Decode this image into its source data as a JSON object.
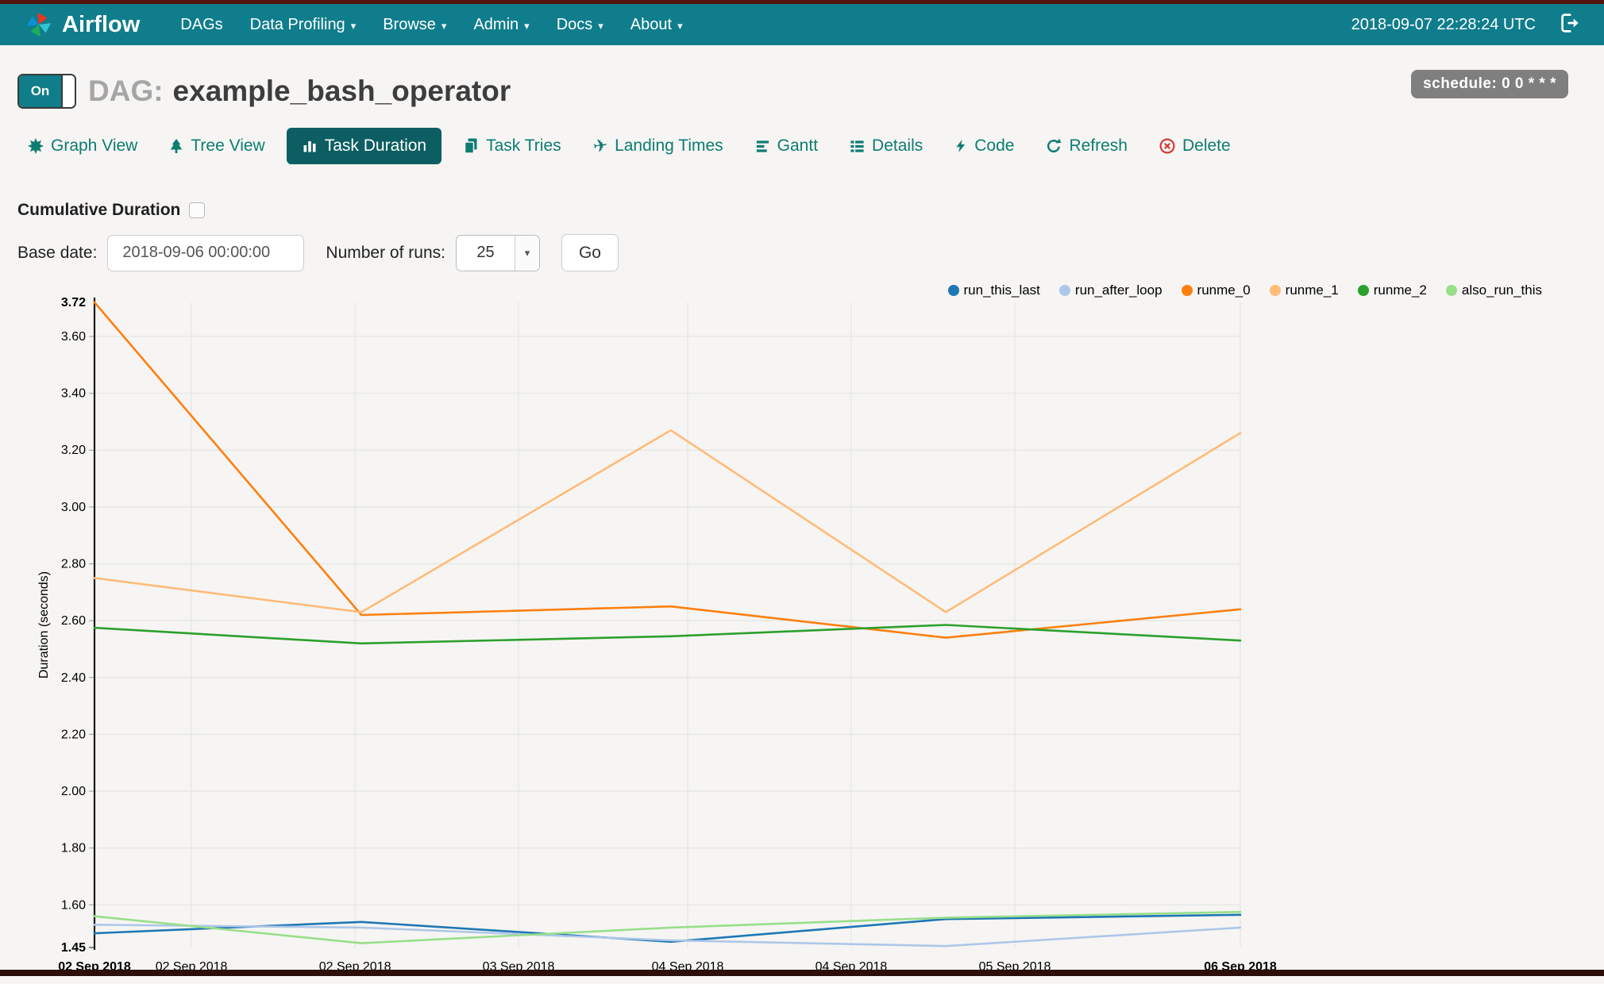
{
  "navbar": {
    "brand": "Airflow",
    "items": [
      {
        "label": "DAGs",
        "caret": false
      },
      {
        "label": "Data Profiling",
        "caret": true
      },
      {
        "label": "Browse",
        "caret": true
      },
      {
        "label": "Admin",
        "caret": true
      },
      {
        "label": "Docs",
        "caret": true
      },
      {
        "label": "About",
        "caret": true
      }
    ],
    "clock": "2018-09-07 22:28:24 UTC"
  },
  "header": {
    "toggle_on_label": "On",
    "dag_prefix": "DAG:",
    "dag_name": "example_bash_operator",
    "schedule_badge": "schedule: 0 0 * * *"
  },
  "tabs": {
    "items": [
      {
        "label": "Graph View"
      },
      {
        "label": "Tree View"
      },
      {
        "label": "Task Duration",
        "active": true
      },
      {
        "label": "Task Tries"
      },
      {
        "label": "Landing Times"
      },
      {
        "label": "Gantt"
      },
      {
        "label": "Details"
      },
      {
        "label": "Code"
      },
      {
        "label": "Refresh"
      },
      {
        "label": "Delete"
      }
    ]
  },
  "controls": {
    "cumulative_label": "Cumulative Duration",
    "base_date_label": "Base date:",
    "base_date_value": "2018-09-06 00:00:00",
    "runs_label": "Number of runs:",
    "runs_value": "25",
    "go_label": "Go"
  },
  "chart_data": {
    "type": "line",
    "ylabel": "Duration (seconds)",
    "y_min": 1.45,
    "y_max": 3.72,
    "y_min_label": "1.45",
    "y_max_label": "3.72",
    "y_ticks": [
      "3.60",
      "3.40",
      "3.20",
      "3.00",
      "2.80",
      "2.60",
      "2.40",
      "2.20",
      "2.00",
      "1.80",
      "1.60"
    ],
    "x_ticks": [
      {
        "f": 0.0,
        "label": "02 Sep 2018",
        "bold": true,
        "grid": false
      },
      {
        "f": 0.0846,
        "label": "02 Sep 2018",
        "bold": false,
        "grid": true
      },
      {
        "f": 0.2274,
        "label": "02 Sep 2018",
        "bold": false,
        "grid": true
      },
      {
        "f": 0.3701,
        "label": "03 Sep 2018",
        "bold": false,
        "grid": true
      },
      {
        "f": 0.5177,
        "label": "04 Sep 2018",
        "bold": false,
        "grid": true
      },
      {
        "f": 0.6604,
        "label": "04 Sep 2018",
        "bold": false,
        "grid": true
      },
      {
        "f": 0.8032,
        "label": "05 Sep 2018",
        "bold": false,
        "grid": true
      },
      {
        "f": 1.0,
        "label": "06 Sep 2018",
        "bold": true,
        "grid": true
      }
    ],
    "point_fractions": [
      0.0,
      0.233,
      0.503,
      0.743,
      1.0
    ],
    "series": [
      {
        "name": "run_this_last",
        "color": "#1f77b4",
        "values": [
          1.5,
          1.54,
          1.47,
          1.55,
          1.565
        ]
      },
      {
        "name": "run_after_loop",
        "color": "#aec7e8",
        "values": [
          1.53,
          1.52,
          1.475,
          1.455,
          1.52
        ]
      },
      {
        "name": "runme_0",
        "color": "#ff7f0e",
        "values": [
          3.72,
          2.62,
          2.65,
          2.54,
          2.64
        ]
      },
      {
        "name": "runme_1",
        "color": "#ffbb78",
        "values": [
          2.75,
          2.63,
          3.27,
          2.63,
          3.26
        ]
      },
      {
        "name": "runme_2",
        "color": "#2ca02c",
        "values": [
          2.575,
          2.52,
          2.545,
          2.585,
          2.53
        ]
      },
      {
        "name": "also_run_this",
        "color": "#98df8a",
        "values": [
          1.56,
          1.465,
          1.52,
          1.555,
          1.575
        ]
      }
    ],
    "grid": true,
    "legend_position": "top-right"
  }
}
